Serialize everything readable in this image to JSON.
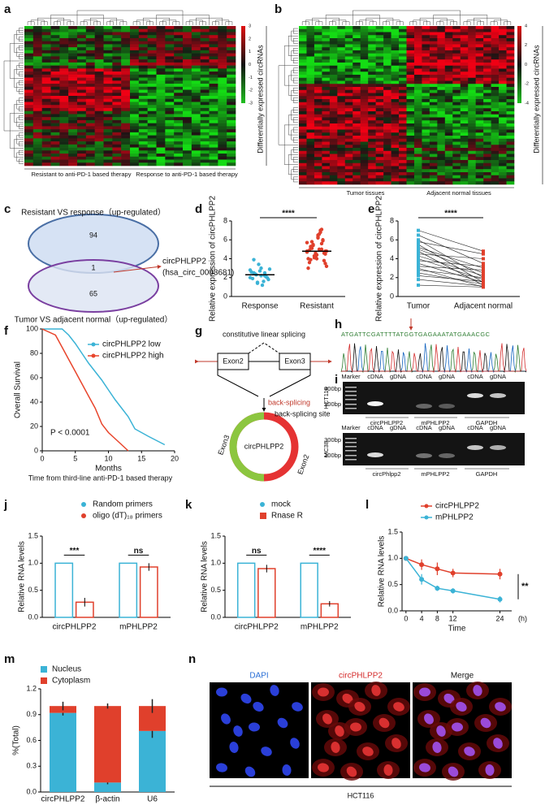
{
  "panels": [
    "a",
    "b",
    "c",
    "d",
    "e",
    "f",
    "g",
    "h",
    "i",
    "j",
    "k",
    "l",
    "m",
    "n"
  ],
  "heatmap_a": {
    "group_labels": [
      "Resistant to anti-PD-1 based therapy",
      "Response to anti-PD-1 based therapy"
    ],
    "side_label": "Differentially expressed circRNAs",
    "scale_ticks": [
      3,
      2,
      1,
      0,
      -1,
      -2,
      -3
    ]
  },
  "heatmap_b": {
    "group_labels": [
      "Tumor tissues",
      "Adjacent normal tissues"
    ],
    "side_label": "Differentially expressed circRNAs",
    "scale_ticks": [
      4,
      2,
      0,
      -2,
      -4
    ]
  },
  "venn": {
    "top_label": "Resistant VS response（up-regulated）",
    "bottom_label": "Tumor VS adjacent normal（up-regulated）",
    "counts": [
      94,
      1,
      65
    ],
    "target": "circPHLPP2",
    "target_id": "(hsa_circ_0003681)"
  },
  "chart_data": [
    {
      "type": "dot",
      "y_label": "Relative expression of circPHLPP2",
      "categories": [
        "Response",
        "Resistant"
      ],
      "colors": [
        "#3bb3d6",
        "#e0402c"
      ],
      "values": [
        [
          2.0,
          2.5,
          1.5,
          3.0,
          2.2,
          1.8,
          2.6,
          2.4,
          3.4,
          1.2,
          2.1,
          2.9,
          1.9,
          2.3,
          2.7,
          1.6,
          2.0,
          2.8,
          3.9,
          1.4,
          2.2,
          2.5
        ],
        [
          4.8,
          5.2,
          4.3,
          6.5,
          7.1,
          3.5,
          4.0,
          5.8,
          4.6,
          5.0,
          6.0,
          3.2,
          4.9,
          5.5,
          4.4,
          6.8,
          3.8,
          4.7,
          5.3,
          4.1,
          6.2,
          5.6,
          4.5,
          3.0,
          5.1,
          4.2,
          6.6,
          5.9,
          4.8,
          3.6,
          5.4,
          4.0,
          7.0,
          4.6,
          5.7,
          3.9,
          4.3,
          6.3,
          5.0,
          4.8
        ]
      ],
      "means": [
        2.3,
        4.8
      ],
      "ylim": [
        0,
        8
      ],
      "yticks": [
        0,
        2,
        4,
        6,
        8
      ],
      "significance": "****"
    },
    {
      "type": "paired",
      "y_label": "Relative expression of circPHLPP2",
      "categories": [
        "Tumor",
        "Adjacent normal"
      ],
      "colors": [
        "#3bb3d6",
        "#e0402c"
      ],
      "values": [
        [
          7.0,
          6.5,
          6.0,
          5.8,
          5.5,
          5.2,
          5.0,
          4.8,
          4.5,
          4.3,
          4.0,
          3.8,
          3.5,
          3.2,
          3.0,
          2.8,
          2.5,
          2.2,
          1.8,
          1.2
        ],
        [
          4.8,
          3.5,
          2.0,
          4.5,
          1.5,
          3.0,
          2.5,
          1.2,
          4.0,
          2.2,
          1.8,
          3.2,
          1.5,
          2.8,
          1.0,
          2.0,
          1.3,
          1.6,
          1.1,
          1.0
        ]
      ],
      "ylim": [
        0,
        8
      ],
      "yticks": [
        0,
        2,
        4,
        6,
        8
      ],
      "significance": "****"
    },
    {
      "type": "line",
      "y_label": "Overall Survival",
      "x_label": "Months",
      "x_sublabel": "Time from third-line anti-PD-1 based therapy",
      "annotation": "P < 0.0001",
      "series": [
        {
          "name": "circPHLPP2 low",
          "color": "#3bb3d6",
          "x": [
            0,
            3,
            4,
            5,
            6,
            7,
            8,
            9,
            10,
            11,
            12,
            13,
            14,
            16,
            18.5
          ],
          "values": [
            100,
            100,
            95,
            88,
            80,
            72,
            65,
            58,
            50,
            42,
            35,
            28,
            18,
            12,
            5
          ]
        },
        {
          "name": "circPHLPP2 high",
          "color": "#e8452c",
          "x": [
            0,
            2,
            3,
            4,
            5,
            6,
            7,
            8,
            9,
            10,
            11,
            12,
            13
          ],
          "values": [
            100,
            95,
            85,
            75,
            65,
            55,
            45,
            35,
            22,
            15,
            10,
            5,
            0
          ]
        }
      ],
      "xlim": [
        0,
        20
      ],
      "xticks": [
        0,
        5,
        10,
        15,
        20
      ],
      "ylim": [
        0,
        100
      ],
      "yticks": [
        0,
        20,
        40,
        60,
        80,
        100
      ]
    },
    {
      "type": "bar",
      "y_label": "Relative RNA levels",
      "categories": [
        "circPHLPP2",
        "mPHLPP2"
      ],
      "series": [
        {
          "name": "Random primers",
          "color": "#3bb3d6",
          "values": [
            1,
            1
          ],
          "errors": [
            0,
            0
          ]
        },
        {
          "name": "oligo (dT)₁₈ primers",
          "color": "#e0402c",
          "values": [
            0.28,
            0.93
          ],
          "errors": [
            0.08,
            0.07
          ]
        }
      ],
      "significance": [
        "***",
        "ns"
      ],
      "ylim": [
        0,
        1.5
      ],
      "yticks": [
        {
          "value": 0,
          "label": "0.0"
        },
        {
          "value": 0.5,
          "label": "0.5"
        },
        {
          "value": 1,
          "label": "1.0"
        },
        {
          "value": 1.5,
          "label": "1.5"
        }
      ]
    },
    {
      "type": "bar",
      "y_label": "Relative RNA levels",
      "categories": [
        "circPHLPP2",
        "mPHLPP2"
      ],
      "series": [
        {
          "name": "mock",
          "color": "#3bb3d6",
          "values": [
            1,
            1
          ],
          "errors": [
            0,
            0
          ]
        },
        {
          "name": "Rnase R",
          "color": "#e0402c",
          "values": [
            0.9,
            0.25
          ],
          "errors": [
            0.07,
            0.05
          ]
        }
      ],
      "significance": [
        "ns",
        "****"
      ],
      "ylim": [
        0,
        1.5
      ],
      "yticks": [
        {
          "value": 0,
          "label": "0.0"
        },
        {
          "value": 0.5,
          "label": "0.5"
        },
        {
          "value": 1,
          "label": "1.0"
        },
        {
          "value": 1.5,
          "label": "1.5"
        }
      ]
    },
    {
      "type": "line",
      "markers": true,
      "y_label": "Relative RNA levels",
      "x_label": "Time",
      "x_unit": "(h)",
      "x": [
        0,
        4,
        8,
        12,
        24
      ],
      "series": [
        {
          "name": "circPHLPP2",
          "color": "#e0402c",
          "values": [
            1,
            0.88,
            0.8,
            0.72,
            0.7
          ],
          "errors": [
            0,
            0.1,
            0.12,
            0.08,
            0.1
          ]
        },
        {
          "name": "mPHLPP2",
          "color": "#3bb3d6",
          "values": [
            1,
            0.6,
            0.43,
            0.38,
            0.22
          ],
          "errors": [
            0,
            0.1,
            0.05,
            0.05,
            0.06
          ]
        }
      ],
      "significance": "**",
      "xlim": [
        -1,
        27
      ],
      "xticks": [
        0,
        4,
        8,
        12,
        24
      ],
      "ylim": [
        0,
        1.5
      ],
      "yticks": [
        {
          "value": 0,
          "label": "0.0"
        },
        {
          "value": 0.5,
          "label": "0.5"
        },
        {
          "value": 1,
          "label": "1.0"
        },
        {
          "value": 1.5,
          "label": "1.5"
        }
      ]
    },
    {
      "type": "stacked_bar",
      "y_label": "%(Total)",
      "categories": [
        "circPHLPP2",
        "β-actin",
        "U6"
      ],
      "series": [
        {
          "name": "Nucleus",
          "color": "#3bb3d6",
          "values": [
            0.92,
            0.11,
            0.71
          ],
          "errors": [
            0.03,
            0.02,
            0.08
          ]
        },
        {
          "name": "Cytoplasm",
          "color": "#e0402c",
          "values": [
            0.08,
            0.89,
            0.29
          ],
          "errors": [
            0.05,
            0.03,
            0.08
          ]
        }
      ],
      "ylim": [
        0,
        1.2
      ],
      "yticks": [
        {
          "value": 0,
          "label": "0.0"
        },
        {
          "value": 0.3,
          "label": "0.3"
        },
        {
          "value": 0.6,
          "label": "0.6"
        },
        {
          "value": 0.9,
          "label": "0.9"
        },
        {
          "value": 1.2,
          "label": "1.2"
        }
      ]
    }
  ],
  "splicing": {
    "top_label": "constitutive linear splicing",
    "exons": [
      "Exon2",
      "Exon3"
    ],
    "back_splicing": "back-splicing",
    "site": "back-splicing site",
    "circle_label": "circPHLPP2",
    "circle_exons": [
      "Exon3",
      "Exon2"
    ]
  },
  "sequencing": {
    "sequence": "ATGATTCGATTTTATGGTGAGAAATATGAAACGC"
  },
  "gel": {
    "blots": [
      {
        "cell_line": "HCT116",
        "columns": [
          "Marker",
          "cDNA",
          "gDNA",
          "cDNA",
          "gDNA",
          "cDNA",
          "gDNA"
        ],
        "sizes": [
          "300bp",
          "100bp"
        ],
        "groups": [
          "circPHLPP2",
          "mPHLPP2",
          "GAPDH"
        ]
      },
      {
        "cell_line": "MC38",
        "columns": [
          "Marker",
          "cDNA",
          "gDNA",
          "cDNA",
          "gDNA",
          "cDNA",
          "gDNA"
        ],
        "sizes": [
          "300bp",
          "100bp"
        ],
        "groups": [
          "circPhlpp2",
          "mPHLPP2",
          "GAPDH"
        ]
      }
    ]
  },
  "imaging": {
    "channels": [
      "DAPI",
      "circPHLPP2",
      "Merge"
    ],
    "cell_line": "HCT116"
  }
}
